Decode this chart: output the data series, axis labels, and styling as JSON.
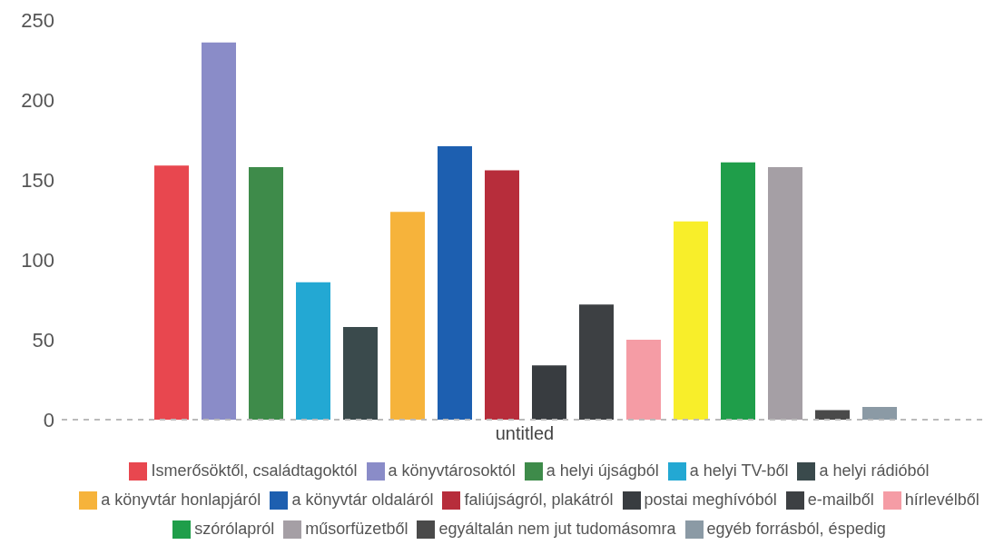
{
  "chart_data": {
    "type": "bar",
    "categories": [
      "untitled"
    ],
    "ylim": [
      0,
      250
    ],
    "yticks": [
      0,
      50,
      100,
      150,
      200,
      250
    ],
    "grid": false,
    "legend": "bottom",
    "series": [
      {
        "name": "Ismerősöktől, családtagoktól",
        "color": "#e8474f",
        "values": [
          159
        ]
      },
      {
        "name": "a könyvtárosoktól",
        "color": "#8a8cc8",
        "values": [
          236
        ]
      },
      {
        "name": "a helyi újságból",
        "color": "#3e8b4a",
        "values": [
          158
        ]
      },
      {
        "name": "a helyi TV-ből",
        "color": "#23a8d3",
        "values": [
          86
        ]
      },
      {
        "name": "a helyi rádióból",
        "color": "#3a4a4c",
        "values": [
          58
        ]
      },
      {
        "name": "a könyvtár honlapjáról",
        "color": "#f6b33b",
        "values": [
          130
        ]
      },
      {
        "name": "a könyvtár oldaláról",
        "color": "#1d5fb0",
        "values": [
          171
        ]
      },
      {
        "name": "faliújságról, plakátról",
        "color": "#b72d3b",
        "values": [
          156
        ]
      },
      {
        "name": "postai meghívóból",
        "color": "#383c40",
        "values": [
          34
        ]
      },
      {
        "name": "e-mailből",
        "color": "#3d4043",
        "values": [
          72
        ]
      },
      {
        "name": "hírlevélből",
        "color": "#f59ca5",
        "values": [
          50
        ]
      },
      {
        "color": "#f8ee2a",
        "values": [
          124
        ]
      },
      {
        "name": "szórólapról",
        "color": "#1f9e4a",
        "values": [
          161
        ]
      },
      {
        "name": "műsorfüzetből",
        "color": "#a59fa5",
        "values": [
          158
        ]
      },
      {
        "name": "egyáltalán nem jut tudomásomra",
        "color": "#4a4a4a",
        "values": [
          6
        ]
      },
      {
        "name": "egyéb forrásból, éspedig",
        "color": "#8b9aa5",
        "values": [
          8
        ]
      }
    ]
  }
}
